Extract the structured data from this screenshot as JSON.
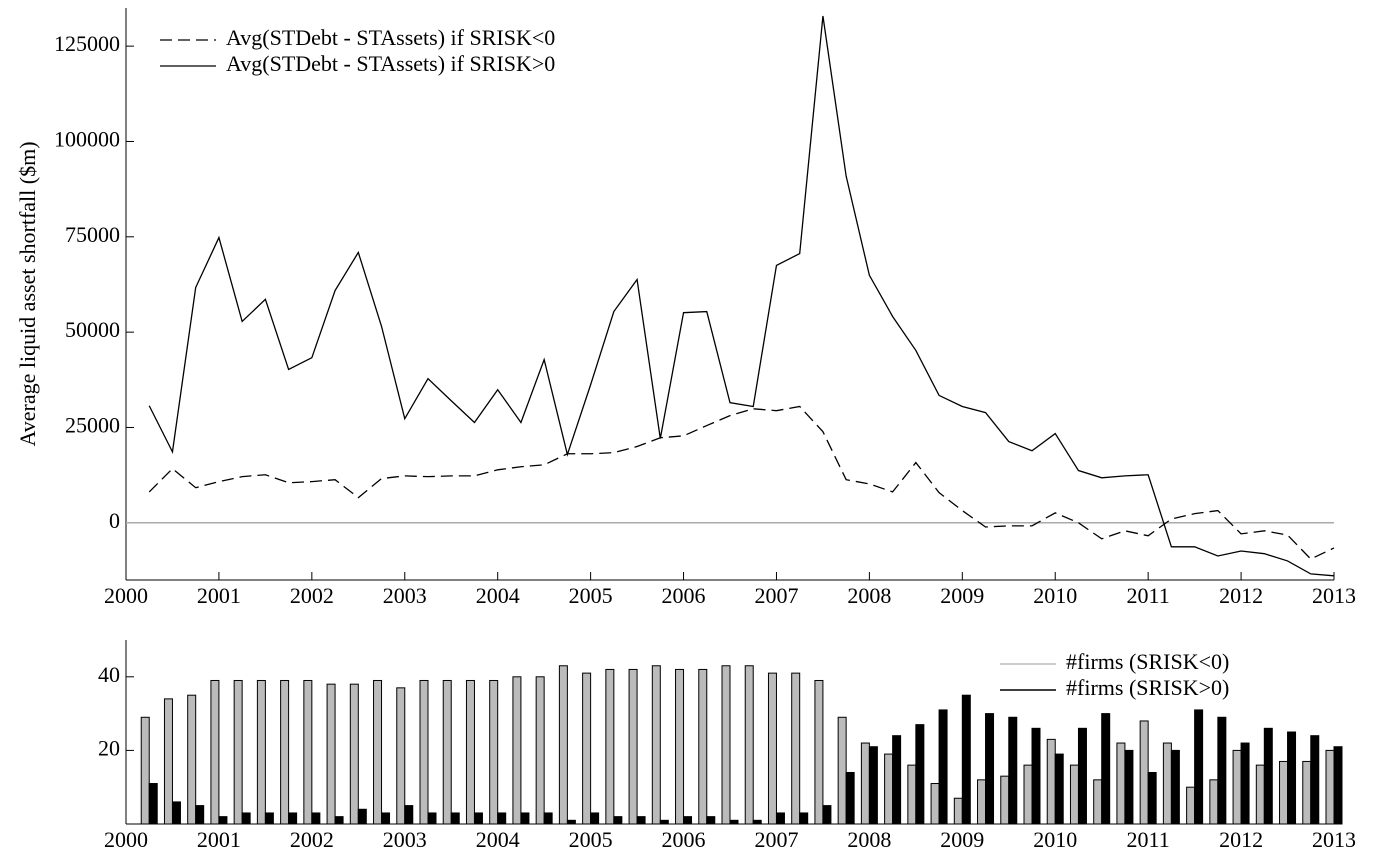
{
  "chart_data": [
    {
      "type": "line",
      "y_label": "Average liquid asset shortfall ($m)",
      "x": [
        2000.25,
        2000.5,
        2000.75,
        2001,
        2001.25,
        2001.5,
        2001.75,
        2002,
        2002.25,
        2002.5,
        2002.75,
        2003,
        2003.25,
        2003.5,
        2003.75,
        2004,
        2004.25,
        2004.5,
        2004.75,
        2005,
        2005.25,
        2005.5,
        2005.75,
        2006,
        2006.25,
        2006.5,
        2006.75,
        2007,
        2007.25,
        2007.5,
        2007.75,
        2008,
        2008.25,
        2008.5,
        2008.75,
        2009,
        2009.25,
        2009.5,
        2009.75,
        2010,
        2010.25,
        2010.5,
        2010.75,
        2011,
        2011.25,
        2011.5,
        2011.75,
        2012,
        2012.25,
        2012.5,
        2012.75,
        2013
      ],
      "series": [
        {
          "name": "Avg(STDebt - STAssets) if SRISK<0",
          "color": "#000000",
          "line_style": "dashed",
          "values": [
            8100,
            14200,
            9200,
            10800,
            12100,
            12600,
            10500,
            10800,
            11300,
            6600,
            11600,
            12300,
            12100,
            12300,
            12300,
            13900,
            14700,
            15200,
            18100,
            18100,
            18400,
            20000,
            22300,
            22800,
            25500,
            28100,
            29900,
            29400,
            30500,
            23900,
            11300,
            10200,
            8100,
            15800,
            7900,
            3200,
            -1100,
            -800,
            -800,
            2600,
            0,
            -4200,
            -2100,
            -3400,
            1000,
            2400,
            3200,
            -2900,
            -2100,
            -3200,
            -9500,
            -6600
          ]
        },
        {
          "name": "Avg(STDebt - STAssets) if SRISK>0",
          "color": "#000000",
          "line_style": "solid",
          "values": [
            30700,
            18600,
            61700,
            74800,
            52800,
            58600,
            40200,
            43300,
            60900,
            70900,
            51500,
            27300,
            37800,
            32000,
            26300,
            34900,
            26300,
            42800,
            17900,
            36200,
            55400,
            63800,
            22100,
            55100,
            55400,
            31500,
            30500,
            67500,
            70600,
            132900,
            90900,
            64900,
            54100,
            45200,
            33400,
            30500,
            28900,
            21300,
            18900,
            23400,
            13700,
            11800,
            12300,
            12600,
            -6300,
            -6300,
            -8700,
            -7400,
            -8100,
            -10000,
            -13400,
            -13900
          ]
        }
      ],
      "xlim": [
        2000,
        2013
      ],
      "xticks": [
        2000,
        2001,
        2002,
        2003,
        2004,
        2005,
        2006,
        2007,
        2008,
        2009,
        2010,
        2011,
        2012,
        2013
      ],
      "ylim": [
        -15000,
        135000
      ],
      "yticks": [
        0,
        25000,
        50000,
        75000,
        100000,
        125000
      ],
      "reference_line": 0,
      "legend": "upper left"
    },
    {
      "type": "bar",
      "x": [
        2000.25,
        2000.5,
        2000.75,
        2001,
        2001.25,
        2001.5,
        2001.75,
        2002,
        2002.25,
        2002.5,
        2002.75,
        2003,
        2003.25,
        2003.5,
        2003.75,
        2004,
        2004.25,
        2004.5,
        2004.75,
        2005,
        2005.25,
        2005.5,
        2005.75,
        2006,
        2006.25,
        2006.5,
        2006.75,
        2007,
        2007.25,
        2007.5,
        2007.75,
        2008,
        2008.25,
        2008.5,
        2008.75,
        2009,
        2009.25,
        2009.5,
        2009.75,
        2010,
        2010.25,
        2010.5,
        2010.75,
        2011,
        2011.25,
        2011.5,
        2011.75,
        2012,
        2012.25,
        2012.5,
        2012.75,
        2013
      ],
      "series": [
        {
          "name": "#firms (SRISK<0)",
          "color": "#bbbbbb",
          "values": [
            29,
            34,
            35,
            39,
            39,
            39,
            39,
            39,
            38,
            38,
            39,
            37,
            39,
            39,
            39,
            39,
            40,
            40,
            43,
            41,
            42,
            42,
            43,
            42,
            42,
            43,
            43,
            41,
            41,
            39,
            29,
            22,
            19,
            16,
            11,
            7,
            12,
            13,
            16,
            23,
            16,
            12,
            22,
            28,
            22,
            10,
            12,
            20,
            16,
            17,
            17,
            20
          ]
        },
        {
          "name": "#firms (SRISK>0)",
          "color": "#000000",
          "values": [
            11,
            6,
            5,
            2,
            3,
            3,
            3,
            3,
            2,
            4,
            3,
            5,
            3,
            3,
            3,
            3,
            3,
            3,
            1,
            3,
            2,
            2,
            1,
            2,
            2,
            1,
            1,
            3,
            3,
            5,
            14,
            21,
            24,
            27,
            31,
            35,
            30,
            29,
            26,
            19,
            26,
            30,
            20,
            14,
            20,
            31,
            29,
            22,
            26,
            25,
            24,
            21
          ]
        }
      ],
      "xlim": [
        2000,
        2013
      ],
      "xticks": [
        2000,
        2001,
        2002,
        2003,
        2004,
        2005,
        2006,
        2007,
        2008,
        2009,
        2010,
        2011,
        2012,
        2013
      ],
      "ylim": [
        0,
        50
      ],
      "yticks": [
        20,
        40
      ],
      "legend": "upper right"
    }
  ]
}
